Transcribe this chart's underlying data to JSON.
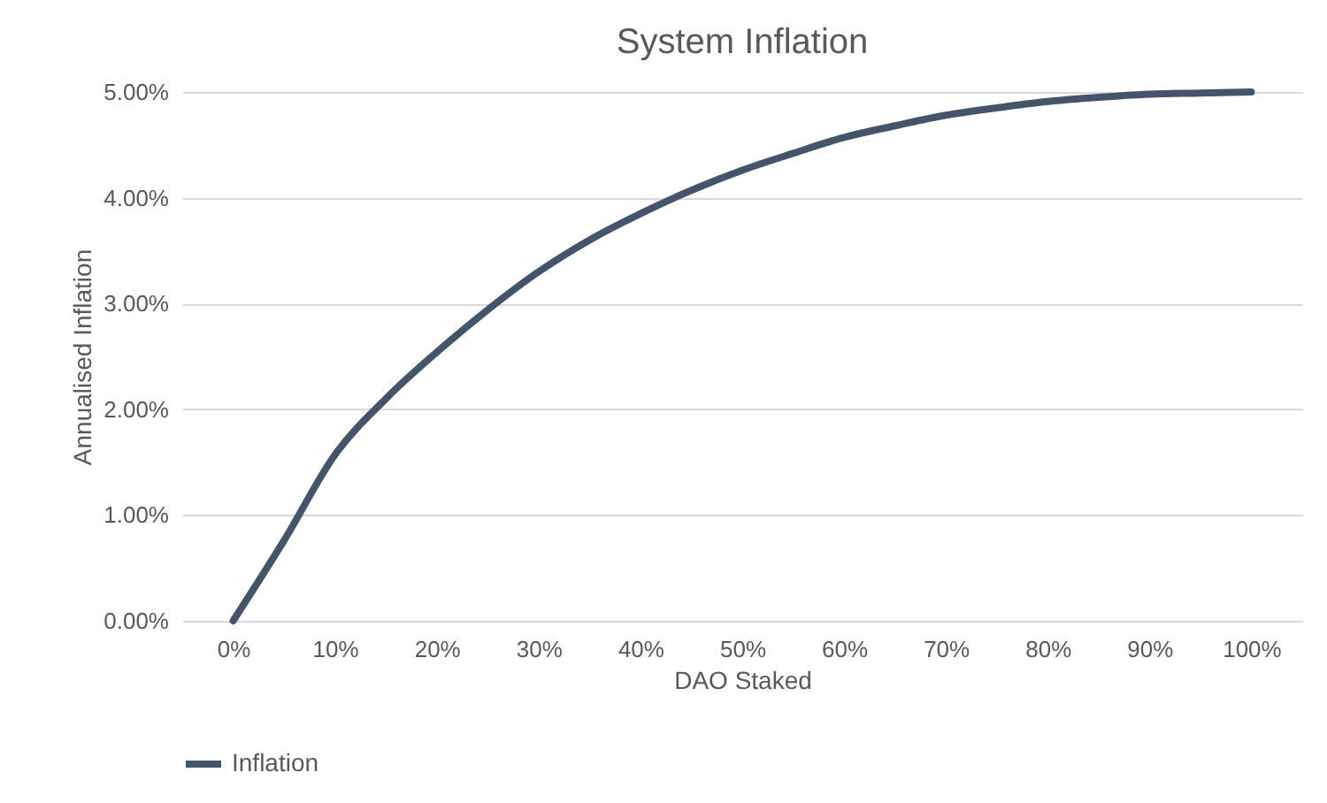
{
  "chart_data": {
    "type": "line",
    "title": "System Inflation",
    "xlabel": "DAO Staked",
    "ylabel": "Annualised Inflation",
    "x": [
      0,
      5,
      10,
      15,
      20,
      25,
      30,
      35,
      40,
      45,
      50,
      55,
      60,
      65,
      70,
      75,
      80,
      85,
      90,
      95,
      100
    ],
    "series": [
      {
        "name": "Inflation",
        "color": "#44546a",
        "values": [
          0,
          0.76,
          1.57,
          2.1,
          2.54,
          2.94,
          3.3,
          3.6,
          3.85,
          4.07,
          4.26,
          4.42,
          4.57,
          4.68,
          4.78,
          4.85,
          4.91,
          4.95,
          4.98,
          4.99,
          5.0
        ]
      }
    ],
    "xlim": [
      -5,
      105
    ],
    "xticks": [
      {
        "value": 0,
        "label": "0%"
      },
      {
        "value": 10,
        "label": "10%"
      },
      {
        "value": 20,
        "label": "20%"
      },
      {
        "value": 30,
        "label": "30%"
      },
      {
        "value": 40,
        "label": "40%"
      },
      {
        "value": 50,
        "label": "50%"
      },
      {
        "value": 60,
        "label": "60%"
      },
      {
        "value": 70,
        "label": "70%"
      },
      {
        "value": 80,
        "label": "80%"
      },
      {
        "value": 90,
        "label": "90%"
      },
      {
        "value": 100,
        "label": "100%"
      }
    ],
    "ylim": [
      0,
      5
    ],
    "yticks": [
      {
        "value": 0,
        "label": "0.00%"
      },
      {
        "value": 1,
        "label": "1.00%"
      },
      {
        "value": 2,
        "label": "2.00%"
      },
      {
        "value": 3,
        "label": "3.00%"
      },
      {
        "value": 4,
        "label": "4.00%"
      },
      {
        "value": 5,
        "label": "5.00%"
      }
    ],
    "grid": "y",
    "legend": "bottom",
    "line_style": "solid",
    "marker": "none"
  }
}
